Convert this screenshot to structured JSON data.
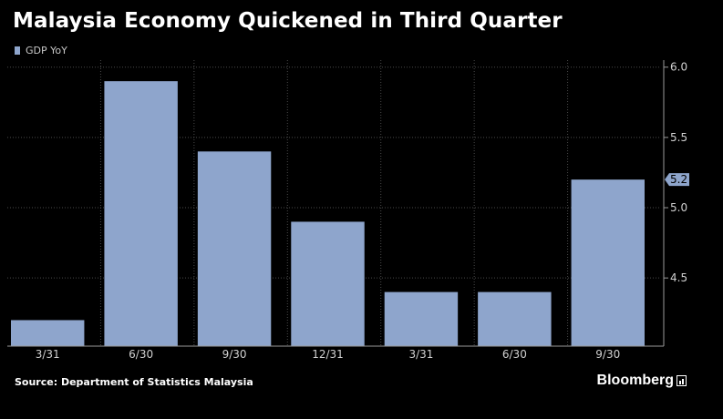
{
  "title": "Malaysia Economy Quickened in Third Quarter",
  "footer": {
    "source": "Source:  Department of Statistics Malaysia",
    "brand": "Bloomberg"
  },
  "colors": {
    "background": "#000000",
    "bar": "#8ea5cc",
    "grid": "#4a4a4a",
    "axis_text": "#d0d0d0"
  },
  "chart_data": {
    "type": "bar",
    "legend": [
      "GDP YoY"
    ],
    "categories": [
      "3/31",
      "6/30",
      "9/30",
      "12/31",
      "3/31",
      "6/30",
      "9/30"
    ],
    "series": [
      {
        "name": "GDP YoY",
        "values": [
          4.2,
          5.9,
          5.4,
          4.9,
          4.4,
          4.4,
          5.2
        ]
      }
    ],
    "yticks": [
      4.5,
      5.0,
      5.5,
      6.0
    ],
    "ytick_labels": [
      "4.5",
      "5.0",
      "5.5",
      "6.0"
    ],
    "ylim": [
      4.015,
      6.05
    ],
    "y_axis_side": "right",
    "last_value_label": "5.2",
    "grid": true
  }
}
